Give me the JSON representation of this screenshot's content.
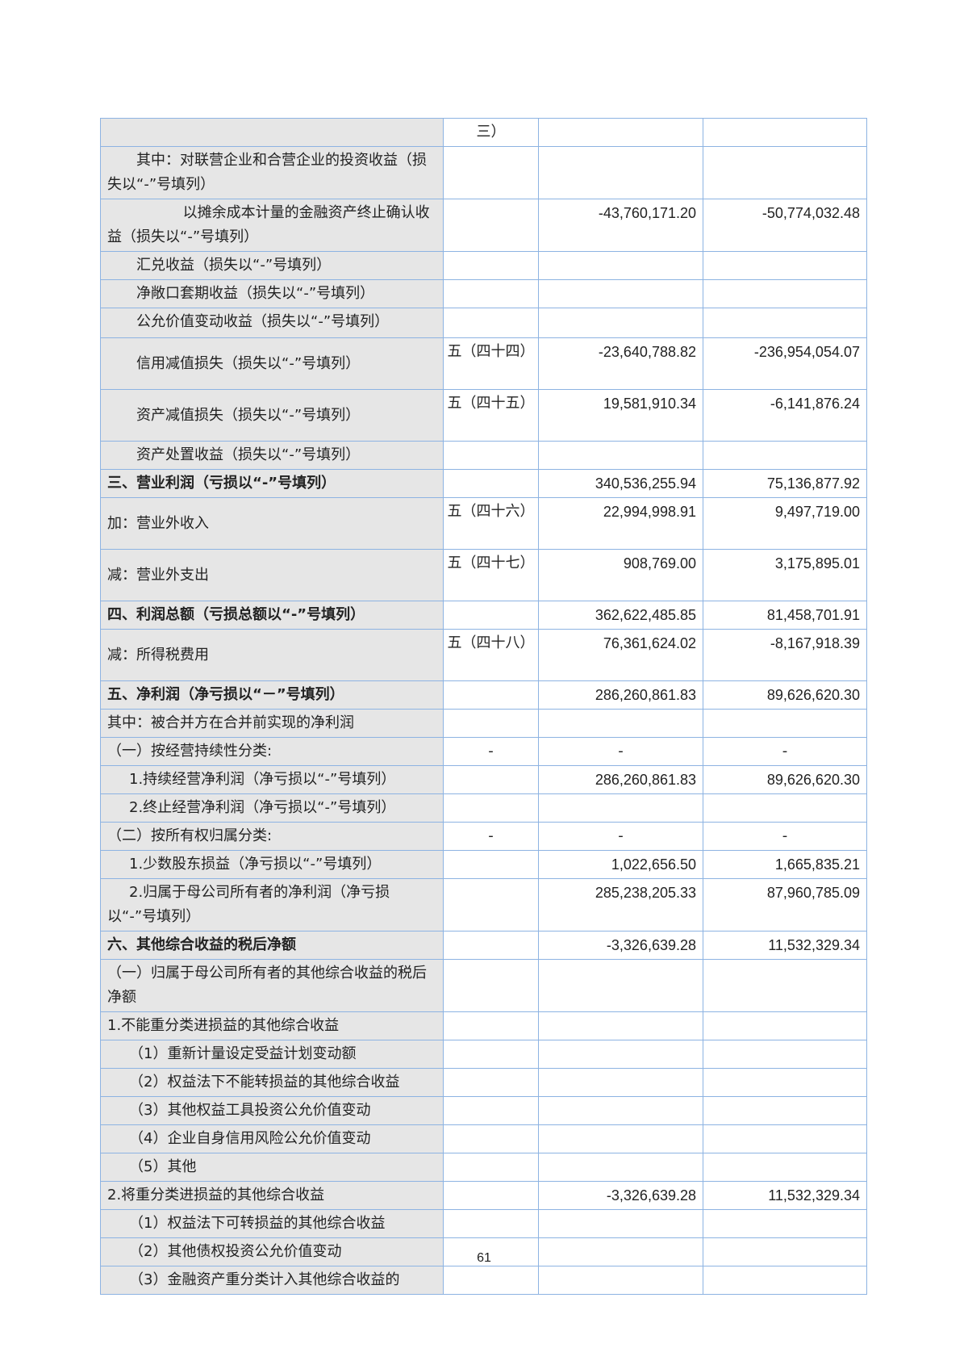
{
  "table": {
    "rows": [
      {
        "label": "",
        "note": "三）",
        "current": "",
        "previous": "",
        "indent": "",
        "h": 32
      },
      {
        "label": "其中：对联营企业和合营企业的投资收益（损失以“-”号填列）",
        "note": "",
        "current": "",
        "previous": "",
        "indent": "i2",
        "h": 64
      },
      {
        "label": "以摊余成本计量的金融资产终止确认收益（损失以“-”号填列）",
        "note": "",
        "current": "-43,760,171.20",
        "previous": "-50,774,032.48",
        "indent": "i5",
        "h": 64
      },
      {
        "label": "汇兑收益（损失以“-”号填列）",
        "note": "",
        "current": "",
        "previous": "",
        "indent": "i2",
        "h": 32
      },
      {
        "label": "净敞口套期收益（损失以“-”号填列）",
        "note": "",
        "current": "",
        "previous": "",
        "indent": "i2",
        "h": 32
      },
      {
        "label": "公允价值变动收益（损失以“-”号填列）",
        "note": "",
        "current": "",
        "previous": "",
        "indent": "i2",
        "h": 37
      },
      {
        "label": "信用减值损失（损失以“-”号填列）",
        "note": "五（四十四）",
        "current": "-23,640,788.82",
        "previous": "-236,954,054.07",
        "indent": "i2",
        "h": 64,
        "mid": true
      },
      {
        "label": "资产减值损失（损失以“-”号填列）",
        "note": "五（四十五）",
        "current": "19,581,910.34",
        "previous": "-6,141,876.24",
        "indent": "i2",
        "h": 64,
        "mid": true
      },
      {
        "label": "资产处置收益（损失以“-”号填列）",
        "note": "",
        "current": "",
        "previous": "",
        "indent": "i2",
        "h": 32
      },
      {
        "label": "三、营业利润（亏损以“-”号填列）",
        "note": "",
        "current": "340,536,255.94",
        "previous": "75,136,877.92",
        "indent": "",
        "h": 32,
        "bold": true
      },
      {
        "label": "加：营业外收入",
        "note": "五（四十六）",
        "current": "22,994,998.91",
        "previous": "9,497,719.00",
        "indent": "",
        "h": 64,
        "mid": true
      },
      {
        "label": "减：营业外支出",
        "note": "五（四十七）",
        "current": "908,769.00",
        "previous": "3,175,895.01",
        "indent": "",
        "h": 64,
        "mid": true
      },
      {
        "label": "四、利润总额（亏损总额以“-”号填列）",
        "note": "",
        "current": "362,622,485.85",
        "previous": "81,458,701.91",
        "indent": "",
        "h": 32,
        "bold": true
      },
      {
        "label": "减：所得税费用",
        "note": "五（四十八）",
        "current": "76,361,624.02",
        "previous": "-8,167,918.39",
        "indent": "",
        "h": 64,
        "mid": true
      },
      {
        "label": "五、净利润（净亏损以“－”号填列）",
        "note": "",
        "current": "286,260,861.83",
        "previous": "89,626,620.30",
        "indent": "",
        "h": 32,
        "bold": true
      },
      {
        "label": "其中：被合并方在合并前实现的净利润",
        "note": "",
        "current": "",
        "previous": "",
        "indent": "",
        "h": 32
      },
      {
        "label": "（一）按经营持续性分类:",
        "note": "-",
        "current": "-",
        "previous": "-",
        "indent": "",
        "h": 32,
        "dash": true
      },
      {
        "label": "1.持续经营净利润（净亏损以“-”号填列）",
        "note": "",
        "current": "286,260,861.83",
        "previous": "89,626,620.30",
        "indent": "i3",
        "h": 32
      },
      {
        "label": "2.终止经营净利润（净亏损以“-”号填列）",
        "note": "",
        "current": "",
        "previous": "",
        "indent": "i3",
        "h": 32
      },
      {
        "label": "（二）按所有权归属分类:",
        "note": "-",
        "current": "-",
        "previous": "-",
        "indent": "",
        "h": 32,
        "dash": true
      },
      {
        "label": "1.少数股东损益（净亏损以“-”号填列）",
        "note": "",
        "current": "1,022,656.50",
        "previous": "1,665,835.21",
        "indent": "i3",
        "h": 32
      },
      {
        "label": "2.归属于母公司所有者的净利润（净亏损以“-”号填列）",
        "note": "",
        "current": "285,238,205.33",
        "previous": "87,960,785.09",
        "indent": "i3",
        "h": 64
      },
      {
        "label": "六、其他综合收益的税后净额",
        "note": "",
        "current": "-3,326,639.28",
        "previous": "11,532,329.34",
        "indent": "",
        "h": 32,
        "bold": true
      },
      {
        "label": "（一）归属于母公司所有者的其他综合收益的税后净额",
        "note": "",
        "current": "",
        "previous": "",
        "indent": "",
        "h": 64
      },
      {
        "label": "1.不能重分类进损益的其他综合收益",
        "note": "",
        "current": "",
        "previous": "",
        "indent": "",
        "h": 32
      },
      {
        "label": "（1）重新计量设定受益计划变动额",
        "note": "",
        "current": "",
        "previous": "",
        "indent": "i3",
        "h": 32
      },
      {
        "label": "（2）权益法下不能转损益的其他综合收益",
        "note": "",
        "current": "",
        "previous": "",
        "indent": "i3",
        "h": 32
      },
      {
        "label": "（3）其他权益工具投资公允价值变动",
        "note": "",
        "current": "",
        "previous": "",
        "indent": "i3",
        "h": 32
      },
      {
        "label": "（4）企业自身信用风险公允价值变动",
        "note": "",
        "current": "",
        "previous": "",
        "indent": "i3",
        "h": 32
      },
      {
        "label": "（5）其他",
        "note": "",
        "current": "",
        "previous": "",
        "indent": "i3",
        "h": 32
      },
      {
        "label": "2.将重分类进损益的其他综合收益",
        "note": "",
        "current": "-3,326,639.28",
        "previous": "11,532,329.34",
        "indent": "",
        "h": 32
      },
      {
        "label": "（1）权益法下可转损益的其他综合收益",
        "note": "",
        "current": "",
        "previous": "",
        "indent": "i3",
        "h": 32
      },
      {
        "label": "（2）其他债权投资公允价值变动",
        "note": "",
        "current": "",
        "previous": "",
        "indent": "i3",
        "h": 32
      },
      {
        "label": "（3）金融资产重分类计入其他综合收益的",
        "note": "",
        "current": "",
        "previous": "",
        "indent": "i3",
        "h": 32
      }
    ]
  },
  "page_number": "61",
  "colors": {
    "border": "#8db3e2",
    "label_bg": "#e6e6e6"
  }
}
